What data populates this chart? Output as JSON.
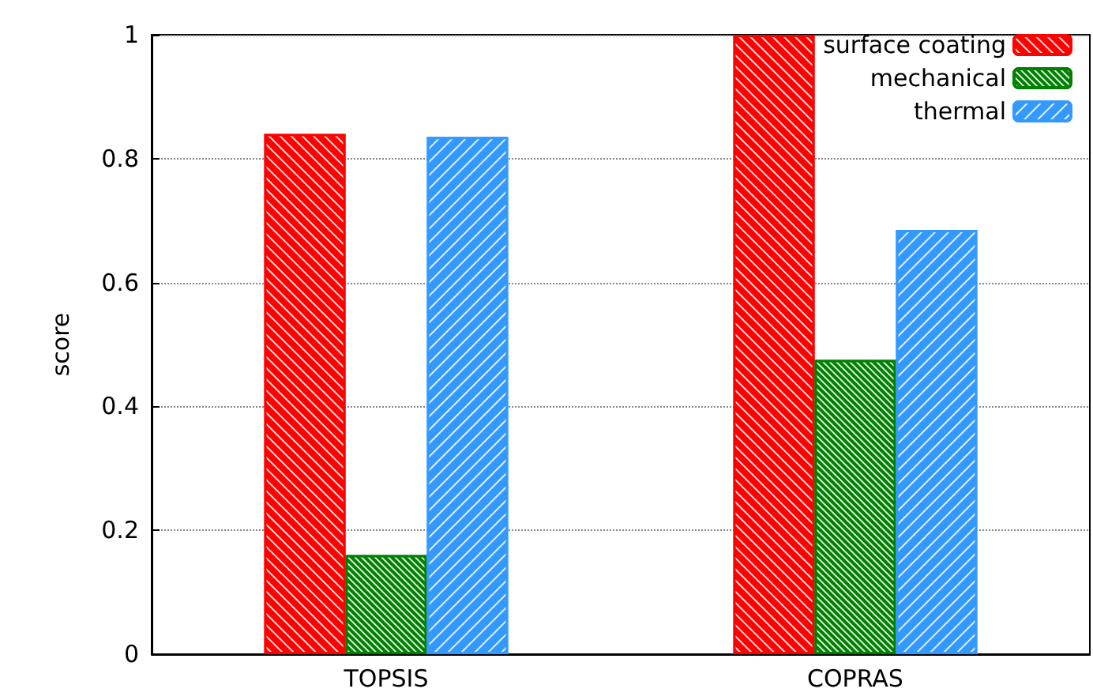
{
  "chart_data": {
    "type": "bar",
    "ylabel": "score",
    "categories": [
      "TOPSIS",
      "COPRAS"
    ],
    "series": [
      {
        "name": "surface coating",
        "color": "#ff0000",
        "values": [
          0.84,
          1.0
        ]
      },
      {
        "name": "mechanical",
        "color": "#008000",
        "values": [
          0.16,
          0.475
        ]
      },
      {
        "name": "thermal",
        "color": "#3399ff",
        "values": [
          0.835,
          0.685
        ]
      }
    ],
    "ylim": [
      0,
      1
    ],
    "yticks": [
      0,
      0.2,
      0.4,
      0.6,
      0.8,
      1
    ],
    "grid": "y",
    "legend": "top right"
  }
}
